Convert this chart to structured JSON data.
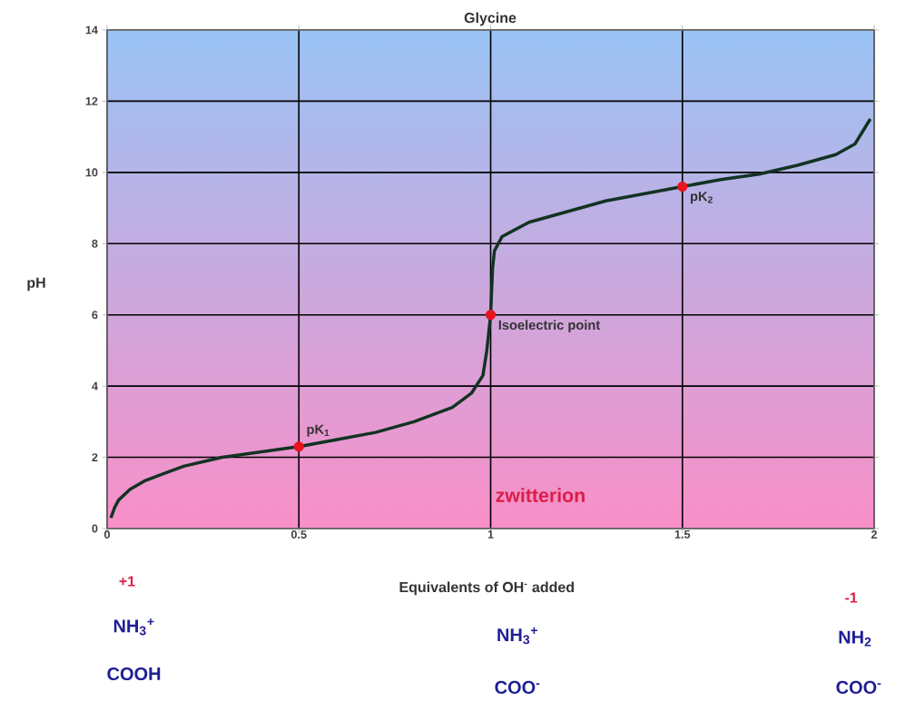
{
  "chart_data": {
    "type": "line",
    "title": "Glycine",
    "xlabel": "Equivalents of OH$^{-}$ added",
    "ylabel": "pH",
    "xlim": [
      0,
      2
    ],
    "ylim": [
      0,
      14
    ],
    "xticks": [
      0,
      0.5,
      1,
      1.5,
      2
    ],
    "yticks": [
      0,
      2,
      4,
      6,
      8,
      10,
      12,
      14
    ],
    "grid": true,
    "series": [
      {
        "color": "#123322",
        "x": [
          0.01,
          0.02,
          0.03,
          0.06,
          0.1,
          0.15,
          0.2,
          0.3,
          0.4,
          0.5,
          0.6,
          0.7,
          0.8,
          0.9,
          0.95,
          0.98,
          0.99,
          1.0,
          1.005,
          1.01,
          1.03,
          1.1,
          1.2,
          1.3,
          1.4,
          1.5,
          1.6,
          1.7,
          1.8,
          1.9,
          1.95,
          1.99
        ],
        "values": [
          0.3,
          0.6,
          0.8,
          1.1,
          1.35,
          1.55,
          1.75,
          2.0,
          2.15,
          2.3,
          2.5,
          2.7,
          3.0,
          3.4,
          3.8,
          4.3,
          5.0,
          6.0,
          7.3,
          7.8,
          8.2,
          8.6,
          8.9,
          9.2,
          9.4,
          9.6,
          9.8,
          9.95,
          10.2,
          10.5,
          10.8,
          11.5
        ]
      },
      {
        "type": "scatter",
        "color": "#e8141e",
        "x": [
          0.5,
          1,
          1.5
        ],
        "values": [
          2.3,
          6,
          9.6
        ]
      }
    ],
    "annotations": [
      {
        "text": "pK$_{1}$",
        "x": 0.5,
        "y": 2.3
      },
      {
        "text": "Isoelectric point",
        "x": 1,
        "y": 6
      },
      {
        "text": "pK$_{2}$",
        "x": 1.5,
        "y": 9.6
      },
      "zwitterion",
      "+1",
      "NH$_{3}$$^{+}$",
      "COOH",
      "NH$_{3}$$^{+}$",
      "COO$^{-}$",
      "-1",
      "NH$_{2}$",
      "COO$^{-}$"
    ]
  }
}
